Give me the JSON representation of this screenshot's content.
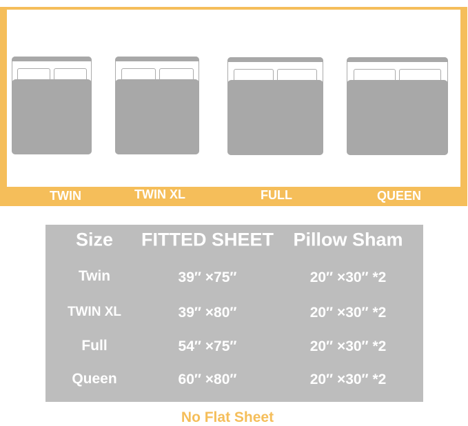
{
  "beds": [
    {
      "label": "TWIN"
    },
    {
      "label": "TWIN XL"
    },
    {
      "label": "FULL"
    },
    {
      "label": "QUEEN"
    }
  ],
  "table": {
    "headers": [
      "Size",
      "FITTED SHEET",
      "Pillow Sham"
    ],
    "rows": [
      [
        "Twin",
        "39″ ×75″",
        "20″ ×30″ *2"
      ],
      [
        "TWIN XL",
        "39″ ×80″",
        "20″ ×30″ *2"
      ],
      [
        "Full",
        "54″ ×75″",
        "20″ ×30″ *2"
      ],
      [
        "Queen",
        "60″ ×80″",
        "20″ ×30″ *2"
      ]
    ]
  },
  "note": "No Flat Sheet",
  "colors": {
    "accent": "#F5BE5A",
    "table": "#BDBDBD",
    "bed": "#A8A8A8"
  }
}
